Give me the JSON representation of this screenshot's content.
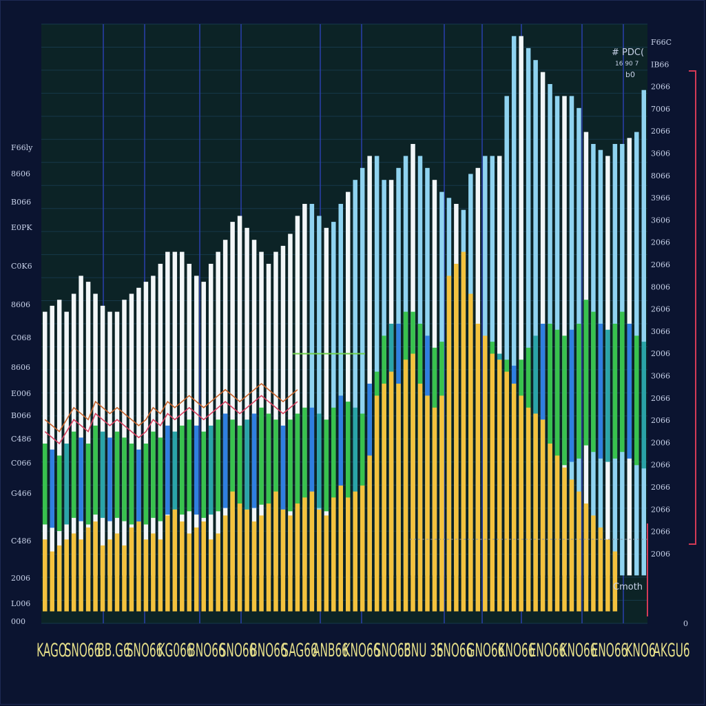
{
  "chart_data": {
    "type": "bar",
    "legend": {
      "title": "#  PDC(",
      "line2": "16    90    7",
      "line3": "b0",
      "position": "top-right"
    },
    "annotation": "Cmoth",
    "y_ticks_left": [
      "F66ly",
      "8606",
      "B066",
      "E0PK",
      "C0K6",
      "8606",
      "C068",
      "8606",
      "E006",
      "B066",
      "C486",
      "C066",
      "G466",
      "C486",
      "2006",
      "L006",
      "000"
    ],
    "y_ticks_right": [
      "F66C",
      "IB66",
      "2066",
      "7006",
      "2066",
      "3606",
      "8066",
      "3966",
      "3606",
      "2066",
      "2066",
      "8006",
      "2606",
      "3066",
      "2006",
      "3066",
      "2066",
      "2066",
      "2006",
      "2066",
      "2066",
      "2066",
      "2066",
      "2006",
      "0"
    ],
    "x_ticks": [
      "KAGO",
      "SNO66",
      "BB.G6",
      "SNO66",
      "KG066",
      "BNO66",
      "SNO66",
      "BNO66",
      "SAG66",
      "ANB66",
      "KNO66",
      "SNO66",
      "BNU 36",
      "SNO66",
      "GNO66",
      "KNO66",
      "ENO66",
      "KNO66",
      "ENO66",
      "KNO6",
      "AKGU6"
    ],
    "colors": {
      "yellow": "#f3c23e",
      "white": "#f2f6f8",
      "cyan": "#8fd3f0",
      "green": "#38c24e",
      "blue": "#2f7fe0",
      "teal": "#2aa4a8",
      "purple": "#6a5acd",
      "line_orange": "#c8642c",
      "line_red": "#d84060",
      "line_green": "#6fcf4a",
      "accent_red": "#d43a56"
    },
    "ylim": [
      0,
      100
    ],
    "series": [
      {
        "name": "white",
        "values": [
          52,
          53,
          54,
          52,
          55,
          58,
          57,
          55,
          53,
          52,
          52,
          54,
          55,
          56,
          57,
          58,
          60,
          62,
          62,
          62,
          60,
          58,
          57,
          60,
          62,
          64,
          67,
          68,
          66,
          64,
          62,
          60,
          62,
          63,
          65,
          68,
          70,
          70,
          68,
          66,
          67,
          70,
          72,
          74,
          76,
          78,
          78,
          74,
          74,
          76,
          78,
          80,
          78,
          76,
          74,
          72,
          71,
          70,
          69,
          75,
          76,
          78,
          78,
          78,
          88,
          98,
          98,
          96,
          94,
          92,
          90,
          88,
          88,
          88,
          86,
          82,
          80,
          79,
          78,
          80,
          80,
          81,
          82,
          89
        ]
      },
      {
        "name": "green",
        "values": [
          30,
          29,
          28,
          30,
          32,
          31,
          30,
          33,
          32,
          31,
          32,
          31,
          30,
          29,
          30,
          32,
          31,
          33,
          32,
          33,
          34,
          33,
          32,
          33,
          34,
          35,
          34,
          33,
          34,
          35,
          36,
          35,
          34,
          33,
          34,
          35,
          36,
          36,
          35,
          34,
          36,
          38,
          37,
          36,
          35,
          40,
          42,
          48,
          50,
          50,
          52,
          52,
          50,
          48,
          46,
          47,
          48,
          47,
          46,
          44,
          45,
          46,
          47,
          45,
          44,
          43,
          44,
          46,
          48,
          50,
          50,
          49,
          48,
          49,
          50,
          54,
          52,
          50,
          49,
          50,
          52,
          50,
          48,
          47
        ]
      },
      {
        "name": "yellow",
        "values": [
          14,
          12,
          13,
          14,
          15,
          14,
          16,
          17,
          13,
          14,
          15,
          13,
          16,
          17,
          14,
          15,
          14,
          18,
          19,
          17,
          15,
          16,
          17,
          14,
          15,
          18,
          22,
          20,
          19,
          17,
          18,
          20,
          22,
          19,
          18,
          20,
          21,
          22,
          19,
          18,
          21,
          23,
          21,
          22,
          23,
          28,
          38,
          40,
          42,
          40,
          44,
          45,
          40,
          38,
          36,
          38,
          58,
          60,
          62,
          55,
          50,
          48,
          45,
          44,
          42,
          40,
          38,
          36,
          35,
          34,
          30,
          28,
          26,
          24,
          22,
          20,
          18,
          16,
          14,
          12,
          10,
          10,
          10,
          10
        ]
      }
    ]
  }
}
